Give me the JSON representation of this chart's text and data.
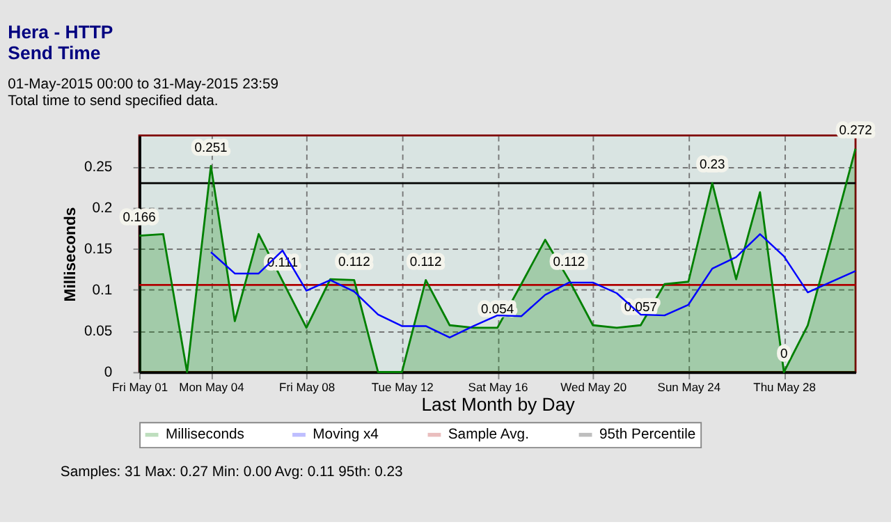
{
  "chart_data": {
    "type": "area",
    "title": "Hera - HTTP\nSend Time",
    "subtitle": "01-May-2015 00:00 to 31-May-2015 23:59\nTotal time to send specified data.",
    "xlabel": "Last Month by Day",
    "ylabel": "Milliseconds",
    "x": [
      "2015-05-01",
      "2015-05-02",
      "2015-05-03",
      "2015-05-04",
      "2015-05-05",
      "2015-05-06",
      "2015-05-07",
      "2015-05-08",
      "2015-05-09",
      "2015-05-10",
      "2015-05-11",
      "2015-05-12",
      "2015-05-13",
      "2015-05-14",
      "2015-05-15",
      "2015-05-16",
      "2015-05-17",
      "2015-05-18",
      "2015-05-19",
      "2015-05-20",
      "2015-05-21",
      "2015-05-22",
      "2015-05-23",
      "2015-05-24",
      "2015-05-25",
      "2015-05-26",
      "2015-05-27",
      "2015-05-28",
      "2015-05-29",
      "2015-05-30",
      "2015-05-31"
    ],
    "series": [
      {
        "name": "Milliseconds",
        "type": "area",
        "color": "#008000",
        "values": [
          0.166,
          0.168,
          0,
          0.251,
          0.062,
          0.168,
          0.111,
          0.054,
          0.113,
          0.112,
          0,
          0,
          0.112,
          0.057,
          0.054,
          0.054,
          0.107,
          0.161,
          0.112,
          0.057,
          0.054,
          0.057,
          0.107,
          0.11,
          0.23,
          0.113,
          0.219,
          0,
          0.057,
          0.163,
          0.272
        ],
        "value_labels": [
          "0.166",
          null,
          null,
          "0.251",
          null,
          null,
          "0.111",
          null,
          null,
          "0.112",
          null,
          null,
          "0.112",
          null,
          null,
          "0.054",
          null,
          null,
          "0.112",
          null,
          null,
          "0.057",
          null,
          null,
          "0.23",
          null,
          null,
          "0",
          null,
          null,
          "0.272"
        ]
      },
      {
        "name": "Moving x4",
        "type": "line",
        "color": "#0000ff",
        "values": [
          null,
          null,
          null,
          0.146,
          0.12,
          0.12,
          0.148,
          0.099,
          0.112,
          0.098,
          0.07,
          0.056,
          0.056,
          0.042,
          0.056,
          0.069,
          0.068,
          0.094,
          0.109,
          0.109,
          0.096,
          0.07,
          0.069,
          0.082,
          0.126,
          0.14,
          0.168,
          0.141,
          0.097,
          0.11,
          0.123
        ]
      }
    ],
    "ref_lines": [
      {
        "axis": "y",
        "value": 0.106,
        "label": "Sample Avg.",
        "color": "#b00000"
      },
      {
        "axis": "y",
        "value": 0.23,
        "label": "95th Percentile",
        "color": "#000000"
      }
    ],
    "xlim": [
      "2015-05-01",
      "2015-05-31"
    ],
    "xticks": [
      {
        "value": "2015-05-01",
        "label": "Fri May 01"
      },
      {
        "value": "2015-05-04",
        "label": "Mon May 04"
      },
      {
        "value": "2015-05-08",
        "label": "Fri May 08"
      },
      {
        "value": "2015-05-12",
        "label": "Tue May 12"
      },
      {
        "value": "2015-05-16",
        "label": "Sat May 16"
      },
      {
        "value": "2015-05-20",
        "label": "Wed May 20"
      },
      {
        "value": "2015-05-24",
        "label": "Sun May 24"
      },
      {
        "value": "2015-05-28",
        "label": "Thu May 28"
      }
    ],
    "ylim": [
      0,
      0.288
    ],
    "yticks": [
      0,
      0.05,
      0.1,
      0.15,
      0.2,
      0.25
    ],
    "grid": true,
    "legend": "bottom",
    "annotations": [
      "Samples: 31 Max: 0.27 Min: 0.00 Avg: 0.11 95th: 0.23"
    ]
  }
}
